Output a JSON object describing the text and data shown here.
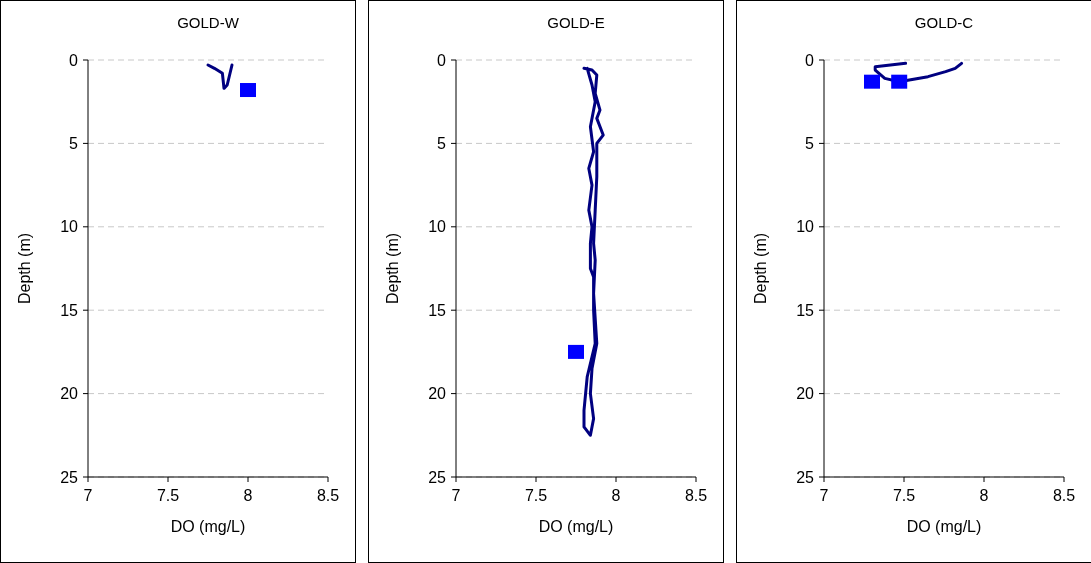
{
  "chart_data": [
    {
      "type": "line",
      "title": "GOLD-W",
      "xlabel": "DO (mg/L)",
      "ylabel": "Depth (m)",
      "xlim": [
        7,
        8.5
      ],
      "ylim": [
        25,
        0
      ],
      "xticks": [
        7,
        7.5,
        8,
        8.5
      ],
      "yticks": [
        0,
        5,
        10,
        15,
        20,
        25
      ],
      "grid": "y",
      "line_style": "solid",
      "series": [
        {
          "type": "line",
          "color": "#000080",
          "x": [
            7.75,
            7.79,
            7.84,
            7.85,
            7.87,
            7.9
          ],
          "values": [
            0.3,
            0.5,
            0.8,
            1.7,
            1.5,
            0.3
          ]
        },
        {
          "type": "scatter",
          "marker": "square",
          "color": "#0000ff",
          "x": [
            8.0
          ],
          "values": [
            1.8
          ]
        }
      ]
    },
    {
      "type": "line",
      "title": "GOLD-E",
      "xlabel": "DO (mg/L)",
      "ylabel": "Depth (m)",
      "xlim": [
        7,
        8.5
      ],
      "ylim": [
        25,
        0
      ],
      "xticks": [
        7,
        7.5,
        8,
        8.5
      ],
      "yticks": [
        0,
        5,
        10,
        15,
        20,
        25
      ],
      "grid": "y",
      "line_style": "solid",
      "series": [
        {
          "type": "line",
          "color": "#000080",
          "x": [
            7.8,
            7.85,
            7.88,
            7.87,
            7.9,
            7.88,
            7.92,
            7.88,
            7.88,
            7.87,
            7.86,
            7.87,
            7.86,
            7.88,
            7.85,
            7.84,
            7.86,
            7.84,
            7.8,
            7.8,
            7.82,
            7.85,
            7.87,
            7.86,
            7.86,
            7.84,
            7.84,
            7.85,
            7.83,
            7.85,
            7.83,
            7.86,
            7.84,
            7.87,
            7.85,
            7.82
          ],
          "values": [
            0.5,
            0.6,
            0.9,
            2,
            3,
            3.5,
            4.5,
            5,
            7,
            9,
            11,
            12,
            14,
            17,
            18.5,
            20,
            21.5,
            22.5,
            22,
            21,
            19,
            17.8,
            17,
            15,
            13,
            12.5,
            11,
            10,
            9,
            7.5,
            6.5,
            5.5,
            4,
            2.5,
            1.5,
            0.5
          ]
        },
        {
          "type": "scatter",
          "marker": "square",
          "color": "#0000ff",
          "x": [
            7.75
          ],
          "values": [
            17.5
          ]
        }
      ]
    },
    {
      "type": "line",
      "title": "GOLD-C",
      "xlabel": "DO (mg/L)",
      "ylabel": "Depth (m)",
      "xlim": [
        7,
        8.5
      ],
      "ylim": [
        25,
        0
      ],
      "xticks": [
        7,
        7.5,
        8,
        8.5
      ],
      "yticks": [
        0,
        5,
        10,
        15,
        20,
        25
      ],
      "grid": "y",
      "line_style": "solid",
      "series": [
        {
          "type": "line",
          "color": "#000080",
          "x": [
            7.51,
            7.32,
            7.32,
            7.38,
            7.47,
            7.65,
            7.76,
            7.82,
            7.86
          ],
          "values": [
            0.2,
            0.4,
            0.6,
            1.1,
            1.3,
            1.0,
            0.7,
            0.5,
            0.2
          ]
        },
        {
          "type": "scatter",
          "marker": "square",
          "color": "#0000ff",
          "x": [
            7.3,
            7.47
          ],
          "values": [
            1.3,
            1.3
          ]
        }
      ]
    }
  ]
}
